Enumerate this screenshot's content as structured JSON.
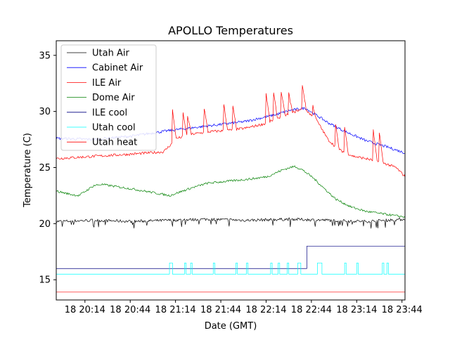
{
  "chart_data": {
    "type": "line",
    "title": "APOLLO Temperatures",
    "xlabel": "Date (GMT)",
    "ylabel": "Temperature (C)",
    "x_unit": "minutes since 18 20:00 GMT",
    "xlim": [
      -5,
      226
    ],
    "ylim": [
      13.2,
      36.3
    ],
    "x_ticks": [
      {
        "value": 14,
        "label": "18 20:14"
      },
      {
        "value": 44,
        "label": "18 20:44"
      },
      {
        "value": 74,
        "label": "18 21:14"
      },
      {
        "value": 104,
        "label": "18 21:44"
      },
      {
        "value": 134,
        "label": "18 22:14"
      },
      {
        "value": 164,
        "label": "18 22:44"
      },
      {
        "value": 194,
        "label": "18 23:14"
      },
      {
        "value": 224,
        "label": "18 23:44"
      }
    ],
    "y_ticks": [
      {
        "value": 15,
        "label": "15"
      },
      {
        "value": 20,
        "label": "20"
      },
      {
        "value": 25,
        "label": "25"
      },
      {
        "value": 30,
        "label": "30"
      },
      {
        "value": 35,
        "label": "35"
      }
    ],
    "grid": false,
    "legend_position": "top-left",
    "series": [
      {
        "name": "Utah Air",
        "color": "#000000",
        "x": [
          -5,
          20,
          45,
          70,
          95,
          120,
          150,
          175,
          200,
          226
        ],
        "y": [
          20.2,
          20.3,
          20.2,
          20.3,
          20.4,
          20.3,
          20.4,
          20.3,
          20.2,
          20.4
        ]
      },
      {
        "name": "Cabinet Air",
        "color": "#0000ff",
        "x": [
          -5,
          20,
          45,
          70,
          95,
          120,
          140,
          150,
          160,
          175,
          185,
          200,
          215,
          226
        ],
        "y": [
          27.6,
          27.5,
          27.8,
          28.3,
          28.7,
          29.1,
          29.7,
          30.1,
          30.3,
          29.0,
          28.3,
          27.4,
          26.8,
          26.3
        ]
      },
      {
        "name": "ILE Air",
        "color": "#ff0000",
        "x": [
          -5,
          20,
          45,
          66,
          75,
          86,
          97,
          108,
          120,
          133,
          140,
          145,
          150,
          155,
          160,
          168,
          175,
          182,
          192,
          200,
          212,
          220,
          226
        ],
        "y": [
          25.8,
          26.0,
          26.2,
          26.4,
          27.6,
          28.0,
          28.2,
          28.3,
          28.5,
          28.9,
          29.3,
          29.6,
          29.8,
          30.1,
          30.2,
          29.1,
          27.5,
          26.6,
          26.0,
          25.8,
          25.4,
          25.0,
          24.2
        ],
        "spikes": [
          {
            "x": 72,
            "peak": 30.1
          },
          {
            "x": 79,
            "peak": 29.8
          },
          {
            "x": 82,
            "peak": 29.6
          },
          {
            "x": 93,
            "peak": 30.3
          },
          {
            "x": 106,
            "peak": 30.7
          },
          {
            "x": 112,
            "peak": 30.4
          },
          {
            "x": 134,
            "peak": 31.6
          },
          {
            "x": 139,
            "peak": 31.6
          },
          {
            "x": 144,
            "peak": 31.8
          },
          {
            "x": 149,
            "peak": 31.6
          },
          {
            "x": 158,
            "peak": 32.4
          },
          {
            "x": 165,
            "peak": 30.5
          },
          {
            "x": 180,
            "peak": 28.8
          },
          {
            "x": 186,
            "peak": 28.6
          },
          {
            "x": 205,
            "peak": 28.3
          },
          {
            "x": 209,
            "peak": 28.2
          }
        ]
      },
      {
        "name": "Dome Air",
        "color": "#008000",
        "x": [
          -5,
          5,
          10,
          20,
          25,
          30,
          45,
          58,
          70,
          85,
          95,
          110,
          125,
          135,
          145,
          150,
          153,
          158,
          165,
          172,
          180,
          190,
          200,
          210,
          220,
          226
        ],
        "y": [
          22.9,
          22.6,
          22.5,
          23.4,
          23.5,
          23.4,
          23.1,
          22.8,
          22.5,
          23.2,
          23.6,
          23.8,
          24.0,
          24.2,
          24.8,
          25.0,
          25.1,
          24.8,
          24.1,
          23.2,
          22.2,
          21.5,
          21.1,
          20.9,
          20.7,
          20.6
        ]
      },
      {
        "name": "ILE cool",
        "color": "#000080",
        "x": [
          -5,
          161,
          161,
          226
        ],
        "y": [
          16.0,
          16.0,
          18.0,
          18.0
        ]
      },
      {
        "name": "Utah cool",
        "color": "#00ffff",
        "base": 15.5,
        "high": 16.5,
        "x_range": [
          -5,
          226
        ],
        "pulses": [
          [
            70,
            72
          ],
          [
            80,
            81
          ],
          [
            84,
            85
          ],
          [
            99,
            100
          ],
          [
            114,
            115
          ],
          [
            121,
            122
          ],
          [
            137,
            138
          ],
          [
            142,
            143
          ],
          [
            148,
            149
          ],
          [
            155,
            157
          ],
          [
            168,
            171
          ],
          [
            186,
            187
          ],
          [
            194,
            195
          ],
          [
            211,
            212
          ],
          [
            214,
            215
          ]
        ]
      },
      {
        "name": "Utah heat",
        "color": "#ff0000",
        "x": [
          -5,
          226
        ],
        "y": [
          13.9,
          13.9
        ]
      }
    ]
  }
}
